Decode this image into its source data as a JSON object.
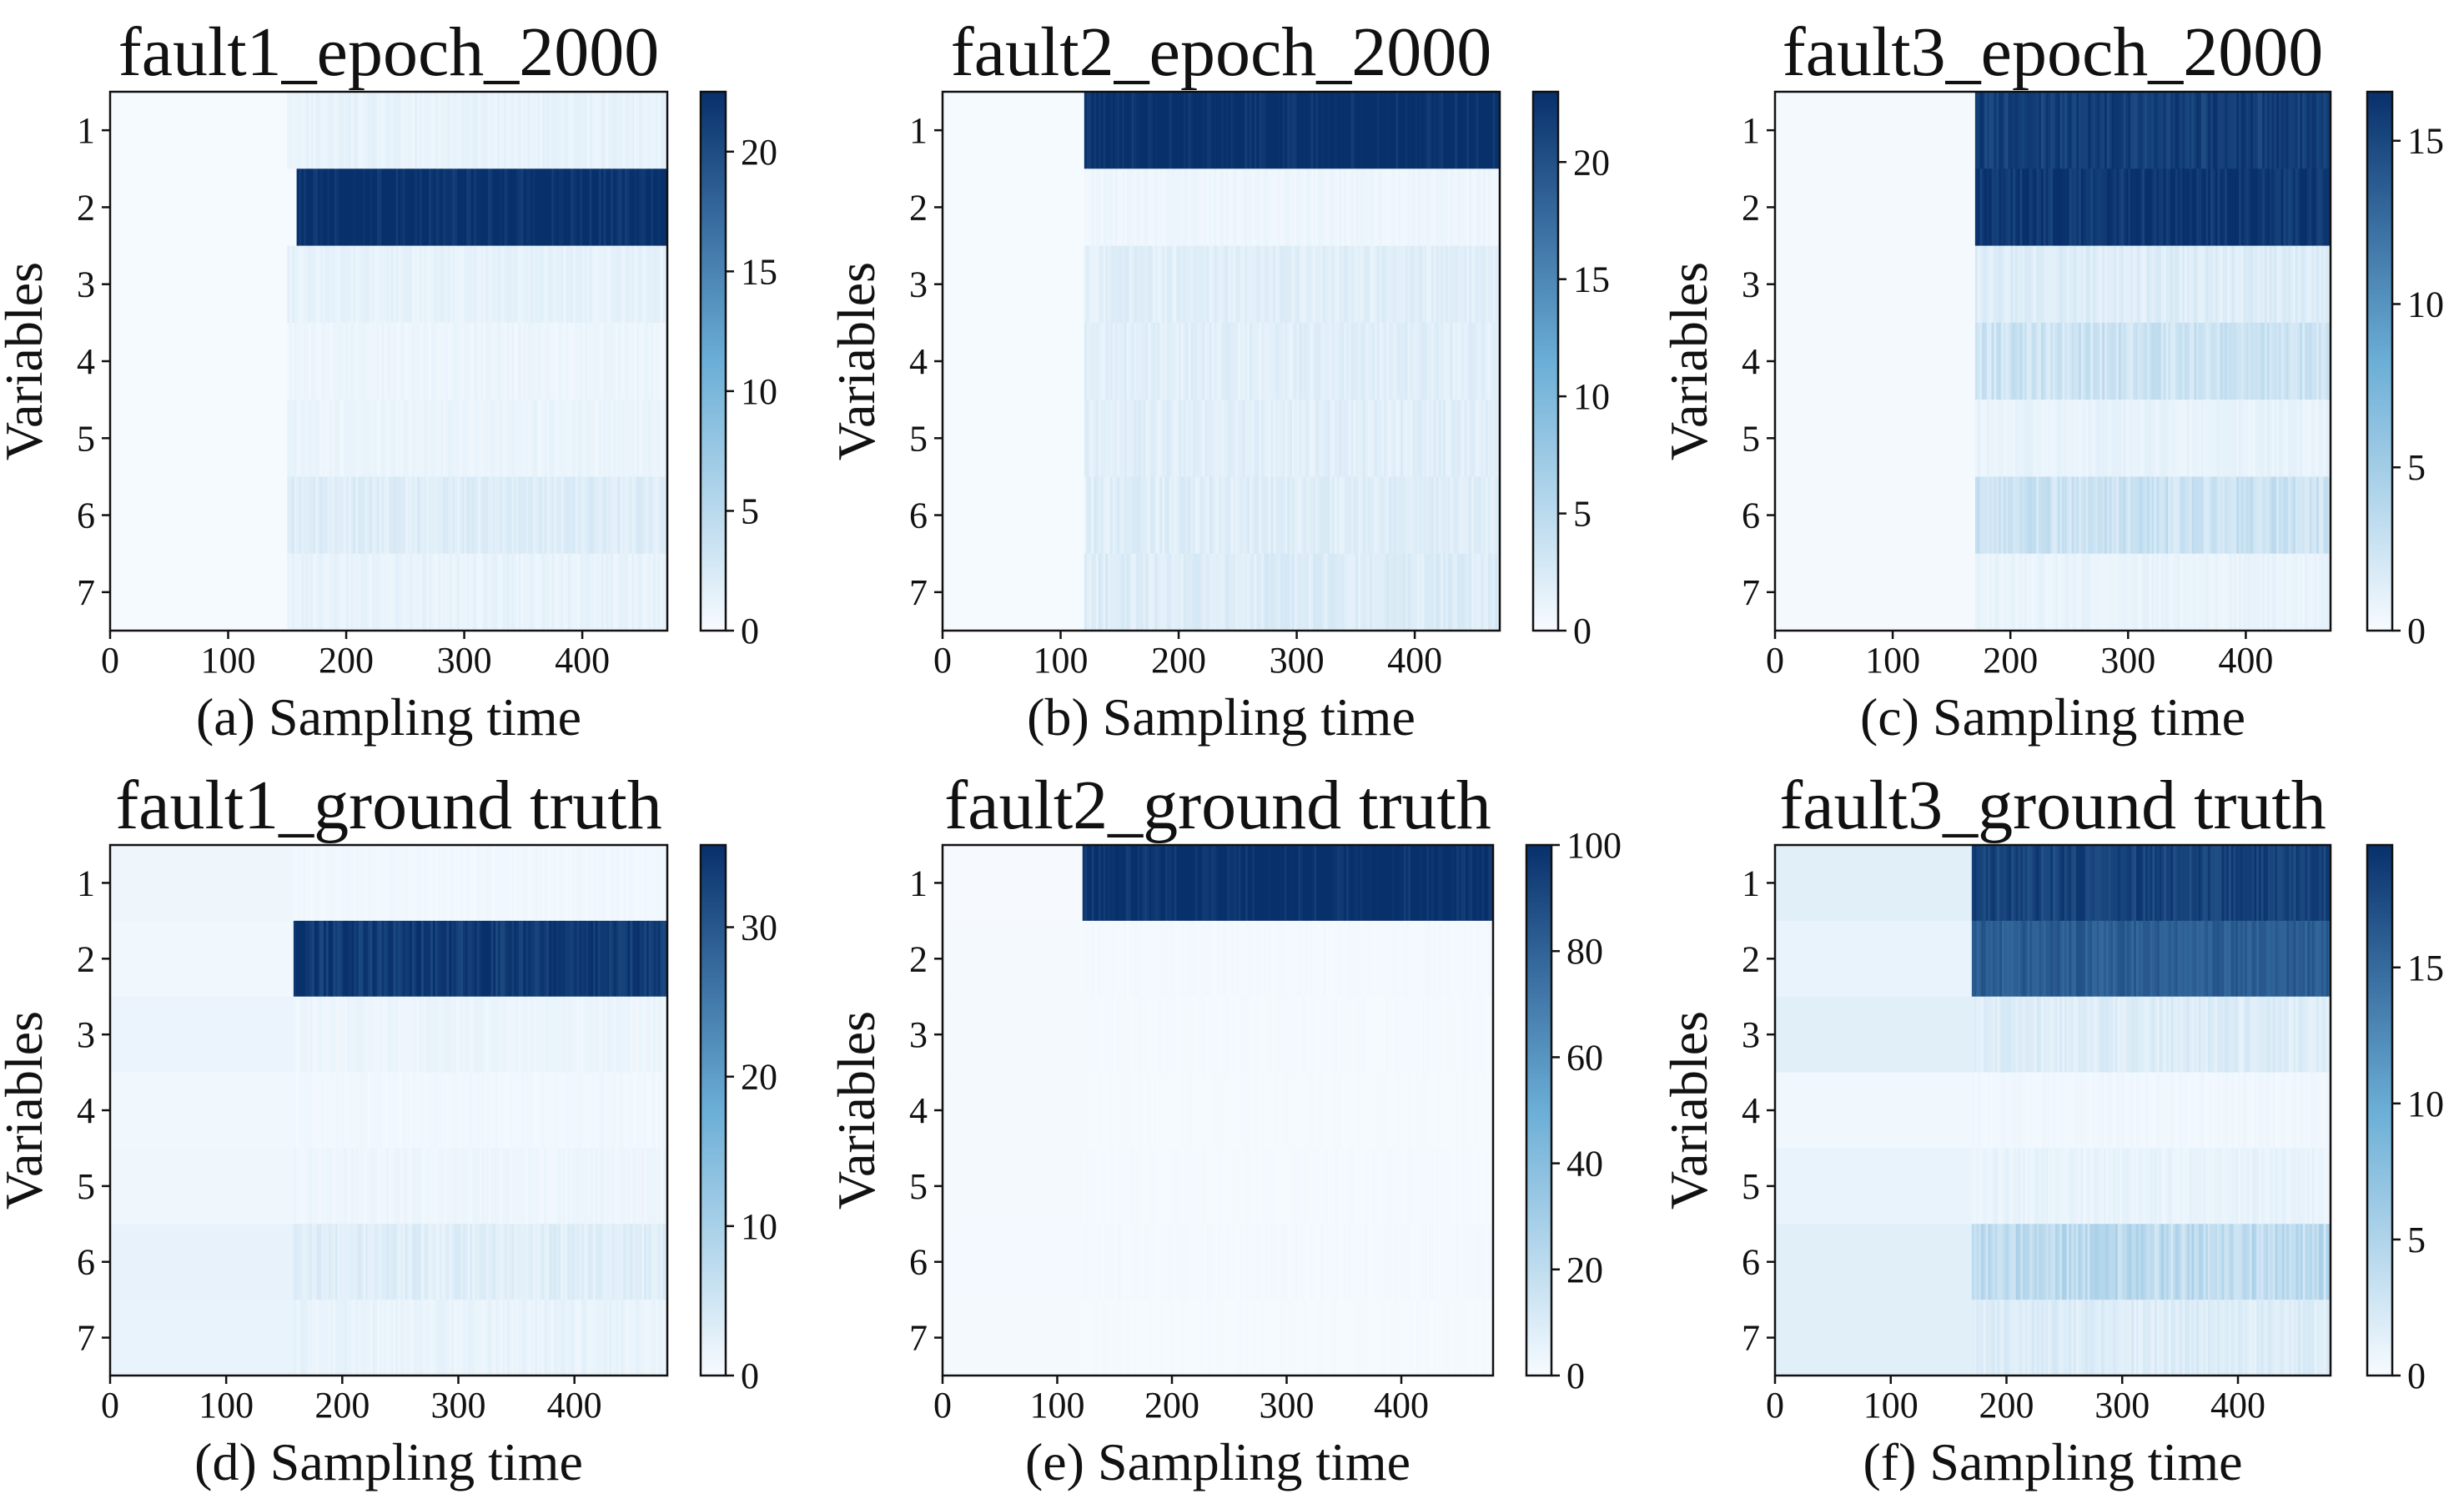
{
  "figure": {
    "description_free": true
  },
  "chart_data": [
    {
      "type": "heatmap",
      "title": "fault1_epoch_2000",
      "panel_label": "(a)",
      "xlabel": "Sampling time",
      "ylabel": "Variables",
      "xlim": [
        0,
        472
      ],
      "xticks": [
        0,
        100,
        200,
        300,
        400
      ],
      "yticks": [
        1,
        2,
        3,
        4,
        5,
        6,
        7
      ],
      "colorbar": {
        "min": 0,
        "max": 22.5,
        "ticks": [
          0,
          5,
          10,
          15,
          20
        ]
      },
      "fault_start": 150,
      "rows": [
        {
          "variable": 1,
          "pre": 0.2,
          "post": 1.2
        },
        {
          "variable": 2,
          "pre": 0.2,
          "post": 22.5,
          "post_start": 158
        },
        {
          "variable": 3,
          "pre": 0.2,
          "post": 1.3
        },
        {
          "variable": 4,
          "pre": 0.2,
          "post": 0.9
        },
        {
          "variable": 5,
          "pre": 0.2,
          "post": 1.0
        },
        {
          "variable": 6,
          "pre": 0.2,
          "post": 2.0
        },
        {
          "variable": 7,
          "pre": 0.2,
          "post": 1.2
        }
      ]
    },
    {
      "type": "heatmap",
      "title": "fault2_epoch_2000",
      "panel_label": "(b)",
      "xlabel": "Sampling time",
      "ylabel": "Variables",
      "xlim": [
        0,
        472
      ],
      "xticks": [
        0,
        100,
        200,
        300,
        400
      ],
      "yticks": [
        1,
        2,
        3,
        4,
        5,
        6,
        7
      ],
      "colorbar": {
        "min": 0,
        "max": 23,
        "ticks": [
          0,
          5,
          10,
          15,
          20
        ]
      },
      "fault_start": 120,
      "rows": [
        {
          "variable": 1,
          "pre": 0.2,
          "post": 23
        },
        {
          "variable": 2,
          "pre": 0.2,
          "post": 0.8
        },
        {
          "variable": 3,
          "pre": 0.2,
          "post": 1.8
        },
        {
          "variable": 4,
          "pre": 0.2,
          "post": 1.8
        },
        {
          "variable": 5,
          "pre": 0.2,
          "post": 1.8
        },
        {
          "variable": 6,
          "pre": 0.2,
          "post": 2.0
        },
        {
          "variable": 7,
          "pre": 0.2,
          "post": 2.2
        }
      ]
    },
    {
      "type": "heatmap",
      "title": "fault3_epoch_2000",
      "panel_label": "(c)",
      "xlabel": "Sampling time",
      "ylabel": "Variables",
      "xlim": [
        0,
        472
      ],
      "xticks": [
        0,
        100,
        200,
        300,
        400
      ],
      "yticks": [
        1,
        2,
        3,
        4,
        5,
        6,
        7
      ],
      "colorbar": {
        "min": 0,
        "max": 16.5,
        "ticks": [
          0,
          5,
          10,
          15
        ]
      },
      "fault_start": 170,
      "rows": [
        {
          "variable": 1,
          "pre": 0.2,
          "post": 15.5
        },
        {
          "variable": 2,
          "pre": 0.2,
          "post": 16.0
        },
        {
          "variable": 3,
          "pre": 0.2,
          "post": 1.5
        },
        {
          "variable": 4,
          "pre": 0.2,
          "post": 2.5
        },
        {
          "variable": 5,
          "pre": 0.2,
          "post": 0.9
        },
        {
          "variable": 6,
          "pre": 0.2,
          "post": 2.6
        },
        {
          "variable": 7,
          "pre": 0.2,
          "post": 0.8
        }
      ]
    },
    {
      "type": "heatmap",
      "title": "fault1_ground truth",
      "panel_label": "(d)",
      "xlabel": "Sampling time",
      "ylabel": "Variables",
      "xlim": [
        0,
        480
      ],
      "xticks": [
        0,
        100,
        200,
        300,
        400
      ],
      "yticks": [
        1,
        2,
        3,
        4,
        5,
        6,
        7
      ],
      "colorbar": {
        "min": 0,
        "max": 35.5,
        "ticks": [
          0,
          10,
          20,
          30
        ]
      },
      "fault_start": 158,
      "rows": [
        {
          "variable": 1,
          "pre": 1.2,
          "post": 0.8
        },
        {
          "variable": 2,
          "pre": 0.8,
          "post": 34
        },
        {
          "variable": 3,
          "pre": 1.5,
          "post": 1.5
        },
        {
          "variable": 4,
          "pre": 0.8,
          "post": 0.8
        },
        {
          "variable": 5,
          "pre": 1.0,
          "post": 1.2
        },
        {
          "variable": 6,
          "pre": 2.0,
          "post": 3.0
        },
        {
          "variable": 7,
          "pre": 1.8,
          "post": 1.8
        }
      ]
    },
    {
      "type": "heatmap",
      "title": "fault2_ground truth",
      "panel_label": "(e)",
      "xlabel": "Sampling time",
      "ylabel": "Variables",
      "xlim": [
        0,
        480
      ],
      "xticks": [
        0,
        100,
        200,
        300,
        400
      ],
      "yticks": [
        1,
        2,
        3,
        4,
        5,
        6,
        7
      ],
      "colorbar": {
        "min": 0,
        "max": 100,
        "ticks": [
          0,
          20,
          40,
          60,
          80,
          100
        ]
      },
      "fault_start": 122,
      "rows": [
        {
          "variable": 1,
          "pre": 0.5,
          "post": 100
        },
        {
          "variable": 2,
          "pre": 1.0,
          "post": 1.5
        },
        {
          "variable": 3,
          "pre": 1.2,
          "post": 1.2
        },
        {
          "variable": 4,
          "pre": 1.0,
          "post": 1.0
        },
        {
          "variable": 5,
          "pre": 1.2,
          "post": 1.2
        },
        {
          "variable": 6,
          "pre": 1.5,
          "post": 1.5
        },
        {
          "variable": 7,
          "pre": 1.0,
          "post": 1.0
        }
      ]
    },
    {
      "type": "heatmap",
      "title": "fault3_ground truth",
      "panel_label": "(f)",
      "xlabel": "Sampling time",
      "ylabel": "Variables",
      "xlim": [
        0,
        480
      ],
      "xticks": [
        0,
        100,
        200,
        300,
        400
      ],
      "yticks": [
        1,
        2,
        3,
        4,
        5,
        6,
        7
      ],
      "colorbar": {
        "min": 0,
        "max": 19.5,
        "ticks": [
          0,
          5,
          10,
          15
        ]
      },
      "fault_start": 170,
      "rows": [
        {
          "variable": 1,
          "pre": 1.5,
          "post": 18
        },
        {
          "variable": 2,
          "pre": 1.0,
          "post": 16
        },
        {
          "variable": 3,
          "pre": 1.5,
          "post": 1.8
        },
        {
          "variable": 4,
          "pre": 0.5,
          "post": 0.5
        },
        {
          "variable": 5,
          "pre": 1.0,
          "post": 1.0
        },
        {
          "variable": 6,
          "pre": 1.5,
          "post": 4.0
        },
        {
          "variable": 7,
          "pre": 1.5,
          "post": 1.8
        }
      ]
    }
  ],
  "colormap": {
    "low": "#f7fbff",
    "mid": "#6baed6",
    "high": "#08306b"
  }
}
